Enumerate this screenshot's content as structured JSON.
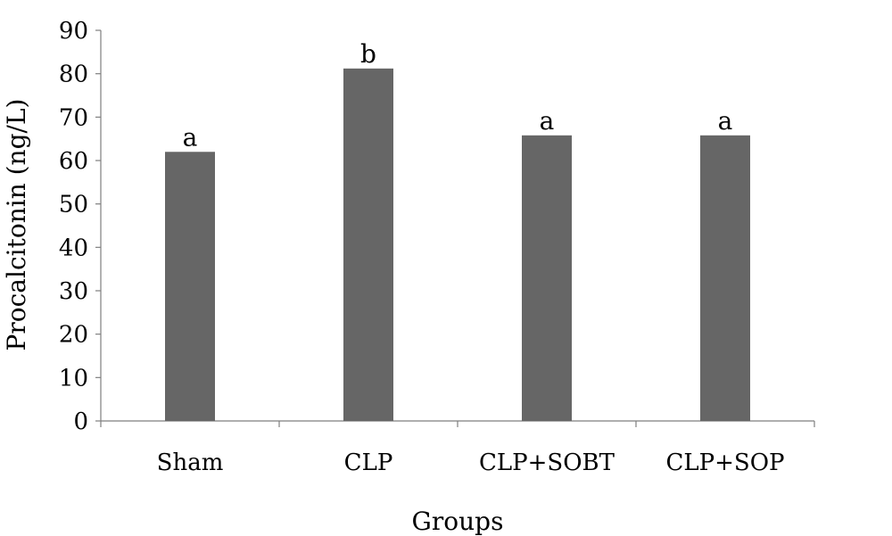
{
  "chart_data": {
    "type": "bar",
    "categories": [
      "Sham",
      "CLP",
      "CLP+SOBT",
      "CLP+SOP"
    ],
    "values": [
      62,
      81.2,
      65.8,
      65.8
    ],
    "data_labels": [
      "a",
      "b",
      "a",
      "a"
    ],
    "xlabel": "Groups",
    "ylabel": "Procalcitonin (ng/L)",
    "ylim": [
      0,
      90
    ],
    "yticks": [
      "0",
      "10",
      "20",
      "30",
      "40",
      "50",
      "60",
      "70",
      "80",
      "90"
    ],
    "grid": false,
    "legend": "none",
    "colors": {
      "bar": "#666666",
      "axis": "#7f7f7f"
    }
  }
}
